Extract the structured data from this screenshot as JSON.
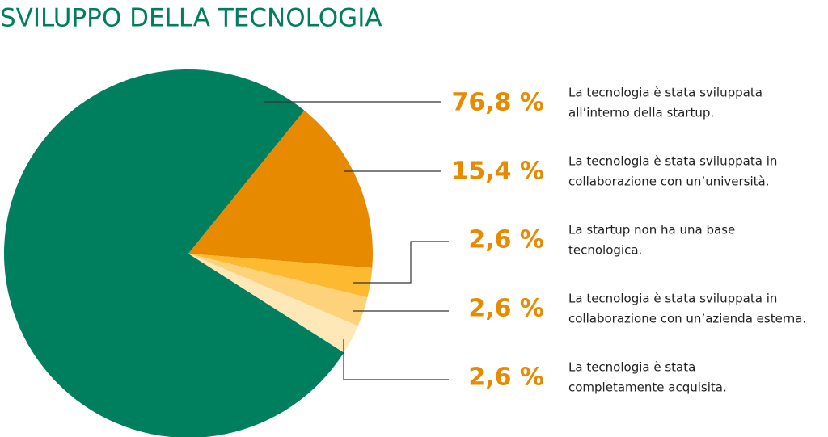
{
  "chart_data": {
    "type": "pie",
    "title": "SVILUPPO DELLA TECNOLOGIA",
    "categories": [
      [
        "La tecnologia è stata sviluppata",
        "all’interno della startup."
      ],
      [
        "La tecnologia è stata sviluppata in",
        "collaborazione con un’università."
      ],
      [
        "La startup non ha una base",
        "tecnologica."
      ],
      [
        "La tecnologia è stata sviluppata in",
        "collaborazione con un’azienda esterna."
      ],
      [
        "La tecnologia è stata",
        "completamente acquisita."
      ]
    ],
    "values": [
      76.8,
      15.4,
      2.6,
      2.6,
      2.6
    ],
    "value_labels": [
      "76,8 %",
      "15,4 %",
      "2,6 %",
      "2,6 %",
      "2,6 %"
    ],
    "colors": [
      "#007f5f",
      "#e88a00",
      "#fdb92f",
      "#fdd27a",
      "#fee8b8"
    ]
  }
}
